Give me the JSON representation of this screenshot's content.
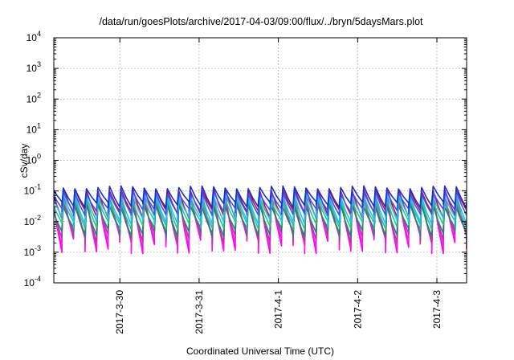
{
  "chart_data": {
    "type": "line",
    "title": "/data/run/goesPlots/archive/2017-04-03/09:00/flux/../bryn/5daysMars.plot",
    "xlabel": "Coordinated Universal Time (UTC)",
    "ylabel": "cSv/day",
    "y_scale": "log",
    "ylim": [
      0.0001,
      10000
    ],
    "xlim": [
      "2017-03-29T04:00",
      "2017-04-03T09:00"
    ],
    "grid": true,
    "legend": "none",
    "y_ticks": [
      {
        "base": "10",
        "exp": "-4",
        "value": 0.0001
      },
      {
        "base": "10",
        "exp": "-3",
        "value": 0.001
      },
      {
        "base": "10",
        "exp": "-2",
        "value": 0.01
      },
      {
        "base": "10",
        "exp": "-1",
        "value": 0.1
      },
      {
        "base": "10",
        "exp": "0",
        "value": 1
      },
      {
        "base": "10",
        "exp": "1",
        "value": 10
      },
      {
        "base": "10",
        "exp": "2",
        "value": 100
      },
      {
        "base": "10",
        "exp": "3",
        "value": 1000
      },
      {
        "base": "10",
        "exp": "4",
        "value": 10000
      }
    ],
    "x_ticks": [
      {
        "label": "2017-3-30",
        "value": "2017-03-30T00:00"
      },
      {
        "label": "2017-3-31",
        "value": "2017-03-31T00:00"
      },
      {
        "label": "2017-4-1",
        "value": "2017-04-01T00:00"
      },
      {
        "label": "2017-4-2",
        "value": "2017-04-02T00:00"
      },
      {
        "label": "2017-4-3",
        "value": "2017-04-03T00:00"
      }
    ],
    "cycle_hours": 3.5,
    "series": [
      {
        "color": "#e8001c",
        "peak": 0.11,
        "trough": 0.0125
      },
      {
        "color": "#ff00ff",
        "peak": 0.085,
        "trough": 0.0009
      },
      {
        "color": "#ee22dd",
        "peak": 0.06,
        "trough": 0.0013
      },
      {
        "color": "#bb33aa",
        "peak": 0.045,
        "trough": 0.002
      },
      {
        "color": "#1a8a6a",
        "peak": 0.032,
        "trough": 0.0032
      },
      {
        "color": "#1fd07a",
        "peak": 0.05,
        "trough": 0.0055
      },
      {
        "color": "#20c0ff",
        "peak": 0.07,
        "trough": 0.008
      },
      {
        "color": "#3355ff",
        "peak": 0.09,
        "trough": 0.016
      },
      {
        "color": "#1133cc",
        "peak": 0.13,
        "trough": 0.028
      }
    ]
  }
}
